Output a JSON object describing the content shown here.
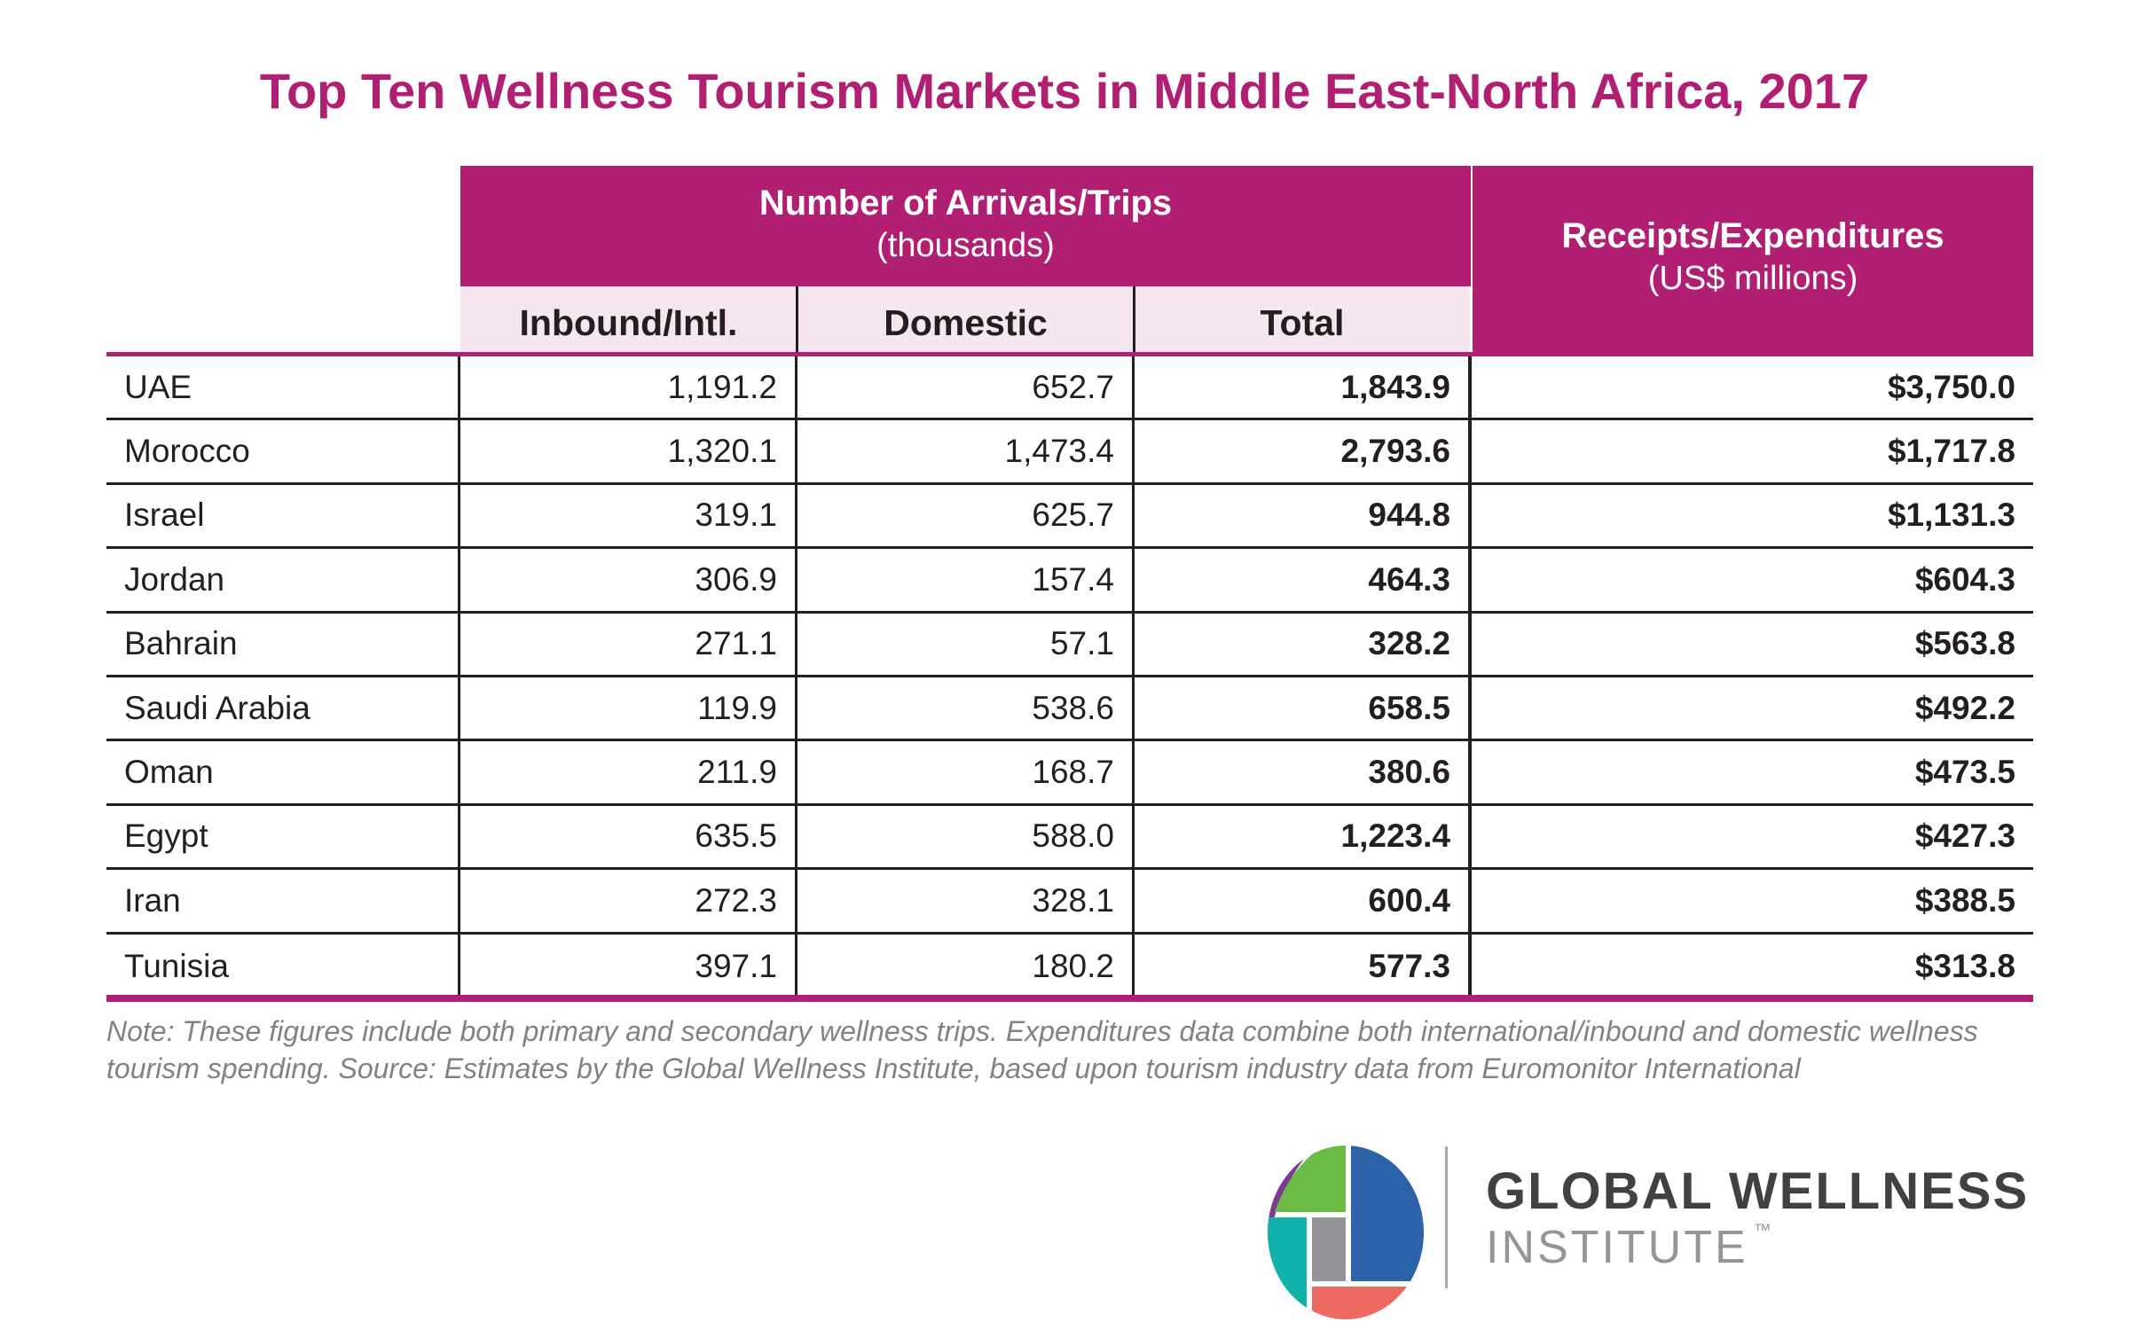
{
  "title": "Top Ten Wellness Tourism Markets in Middle East-North Africa, 2017",
  "header": {
    "arrivals": "Number of Arrivals/Trips",
    "arrivals_unit": "(thousands)",
    "receipts": "Receipts/Expenditures",
    "receipts_unit": "(US$ millions)",
    "subcolumns": [
      "Inbound/Intl.",
      "Domestic",
      "Total"
    ]
  },
  "rows": [
    {
      "country": "UAE",
      "inbound": "1,191.2",
      "domestic": "652.7",
      "total": "1,843.9",
      "receipts": "$3,750.0"
    },
    {
      "country": "Morocco",
      "inbound": "1,320.1",
      "domestic": "1,473.4",
      "total": "2,793.6",
      "receipts": "$1,717.8"
    },
    {
      "country": "Israel",
      "inbound": "319.1",
      "domestic": "625.7",
      "total": "944.8",
      "receipts": "$1,131.3"
    },
    {
      "country": "Jordan",
      "inbound": "306.9",
      "domestic": "157.4",
      "total": "464.3",
      "receipts": "$604.3"
    },
    {
      "country": "Bahrain",
      "inbound": "271.1",
      "domestic": "57.1",
      "total": "328.2",
      "receipts": "$563.8"
    },
    {
      "country": "Saudi Arabia",
      "inbound": "119.9",
      "domestic": "538.6",
      "total": "658.5",
      "receipts": "$492.2"
    },
    {
      "country": "Oman",
      "inbound": "211.9",
      "domestic": "168.7",
      "total": "380.6",
      "receipts": "$473.5"
    },
    {
      "country": "Egypt",
      "inbound": "635.5",
      "domestic": "588.0",
      "total": "1,223.4",
      "receipts": "$427.3"
    },
    {
      "country": "Iran",
      "inbound": "272.3",
      "domestic": "328.1",
      "total": "600.4",
      "receipts": "$388.5"
    },
    {
      "country": "Tunisia",
      "inbound": "397.1",
      "domestic": "180.2",
      "total": "577.3",
      "receipts": "$313.8"
    }
  ],
  "note": "Note: These figures include both primary and secondary wellness trips. Expenditures data combine both international/inbound and domestic wellness tourism spending. Source: Estimates by the Global Wellness Institute, based upon tourism industry data from Euromonitor International",
  "logo": {
    "line1": "GLOBAL WELLNESS",
    "line2": "INSTITUTE",
    "tm": "™"
  },
  "colors": {
    "accent": "#b01f72",
    "subheader": "#f5e6ef"
  }
}
